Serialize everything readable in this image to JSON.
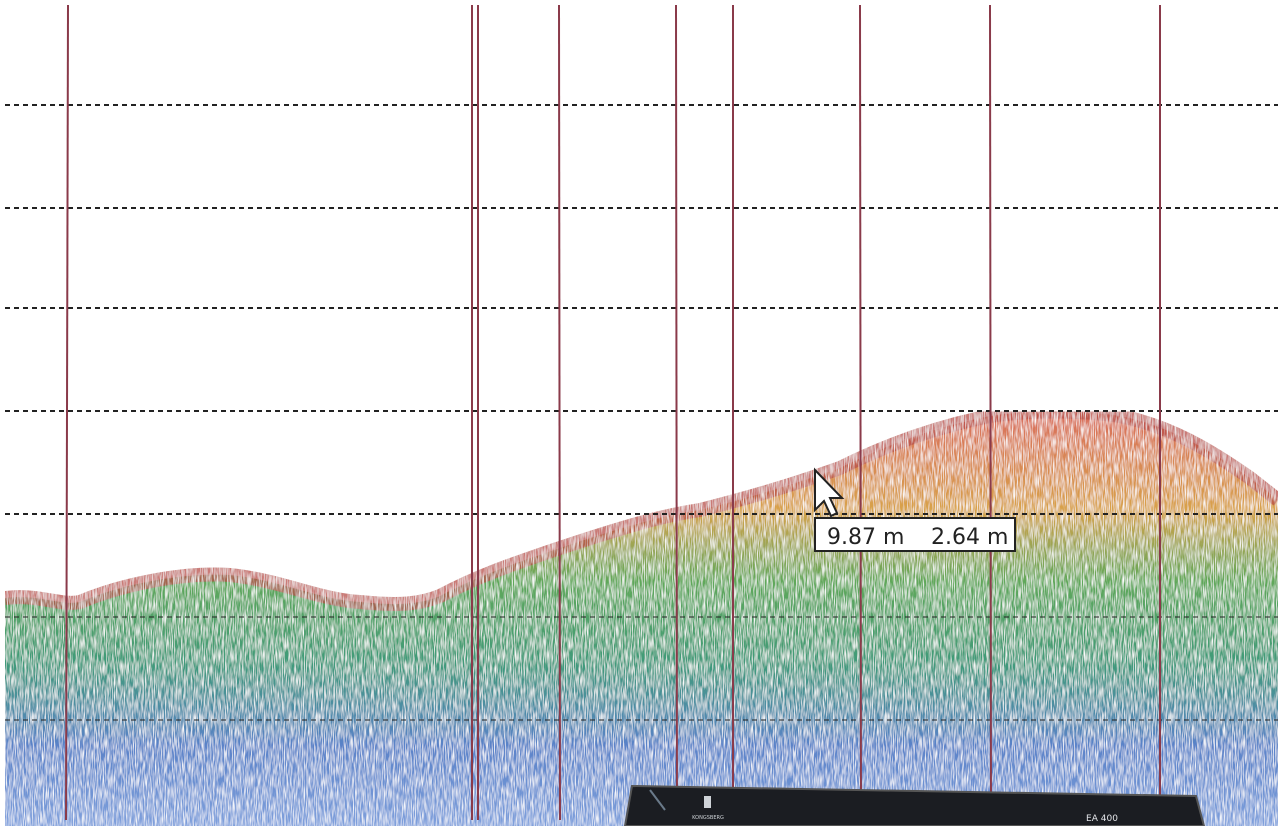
{
  "tooltip": {
    "depth": "9.87 m",
    "reading": "2.64 m"
  },
  "device": {
    "brand": "KONGSBERG",
    "model": "EA 400"
  }
}
